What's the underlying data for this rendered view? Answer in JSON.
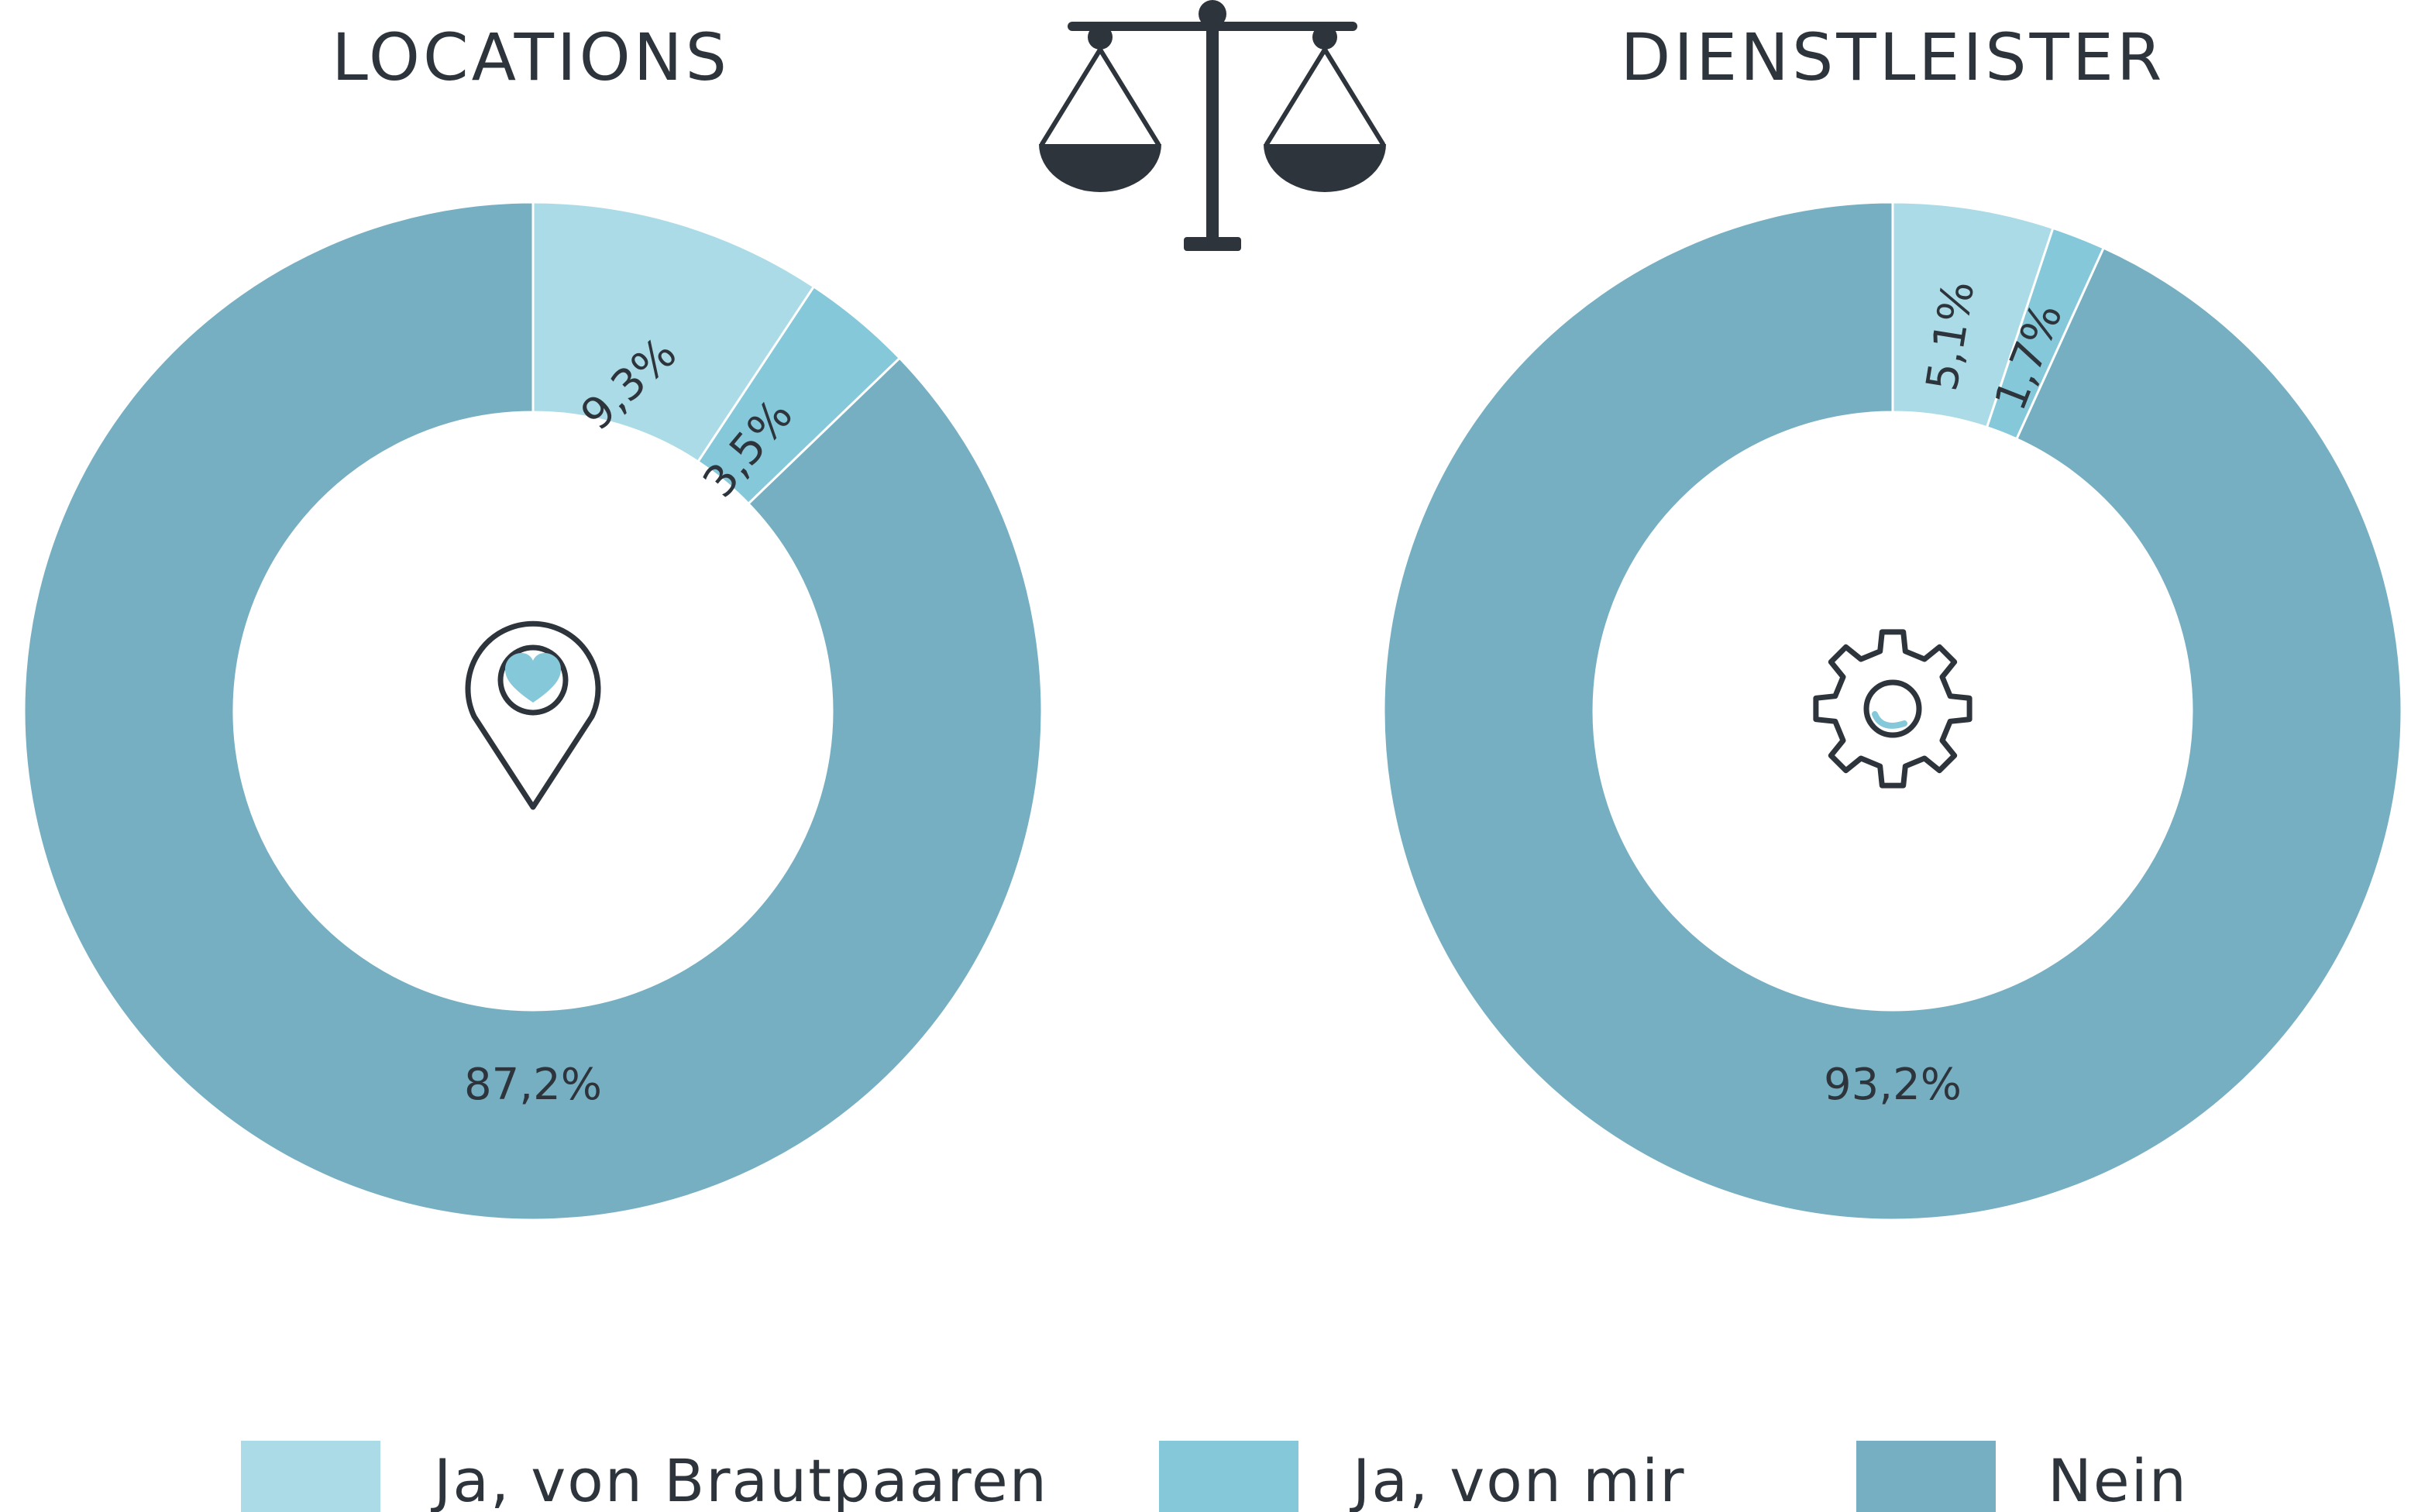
{
  "palette": {
    "ja_brautpaare": "#abdbe6",
    "ja_mir": "#84c8d9",
    "nein": "#76afc1",
    "ink": "#2d343b",
    "icon_accent": "#84c8d9"
  },
  "legend": [
    {
      "label": "Ja, von Brautpaaren",
      "color": "#abdbe6"
    },
    {
      "label": "Ja, von mir",
      "color": "#84c8d9"
    },
    {
      "label": "Nein",
      "color": "#76afc1"
    }
  ],
  "icons": {
    "center": "scale-icon",
    "locations": "location-pin-heart-icon",
    "dienstleister": "gear-heart-icon"
  },
  "chart_data": [
    {
      "type": "pie",
      "title": "LOCATIONS",
      "categories": [
        "Ja, von Brautpaaren",
        "Ja, von mir",
        "Nein"
      ],
      "values": [
        9.3,
        3.5,
        87.2
      ],
      "labels": [
        "9,3%",
        "3,5%",
        "87,2%"
      ],
      "colors": [
        "#abdbe6",
        "#84c8d9",
        "#76afc1"
      ]
    },
    {
      "type": "pie",
      "title": "DIENSTLEISTER",
      "categories": [
        "Ja, von Brautpaaren",
        "Ja, von mir",
        "Nein"
      ],
      "values": [
        5.1,
        1.7,
        93.2
      ],
      "labels": [
        "5,1%",
        "1,7%",
        "93,2%"
      ],
      "colors": [
        "#abdbe6",
        "#84c8d9",
        "#76afc1"
      ]
    }
  ]
}
